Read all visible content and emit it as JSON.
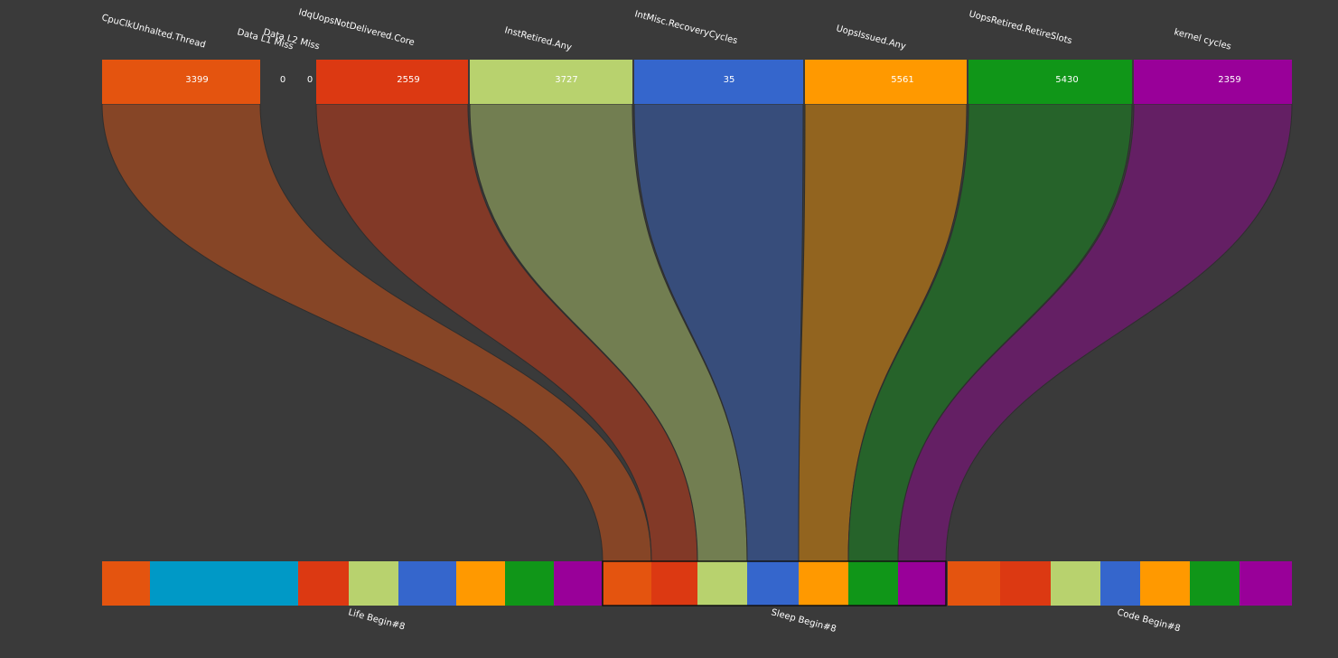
{
  "nodes": [
    {
      "label": "CpuClkUnhalted.Thread",
      "value": 3399,
      "color": "#e4540f"
    },
    {
      "label": "Data L1 Miss",
      "value": 0
    },
    {
      "label": "Data L2 Miss",
      "value": 0
    },
    {
      "label": "IdqUopsNotDelivered.Core",
      "value": 2559,
      "color": "#dc3912"
    },
    {
      "label": "InstRetired.Any",
      "value": 3727,
      "color": "#b8d26e"
    },
    {
      "label": "IntMisc.RecoveryCycles",
      "value": 35,
      "color": "#3566cc"
    },
    {
      "label": "UopsIssued.Any",
      "value": 5561,
      "color": "#ff9900"
    },
    {
      "label": "UopsRetired.RetireSlots",
      "value": 5430,
      "color": "#109618"
    },
    {
      "label": "kernel cycles",
      "value": 2359,
      "color": "#990099"
    }
  ],
  "groups": [
    {
      "label": "Life Begin#8"
    },
    {
      "label": "Sleep Begin#8"
    },
    {
      "label": "Code Begin#8"
    }
  ]
}
